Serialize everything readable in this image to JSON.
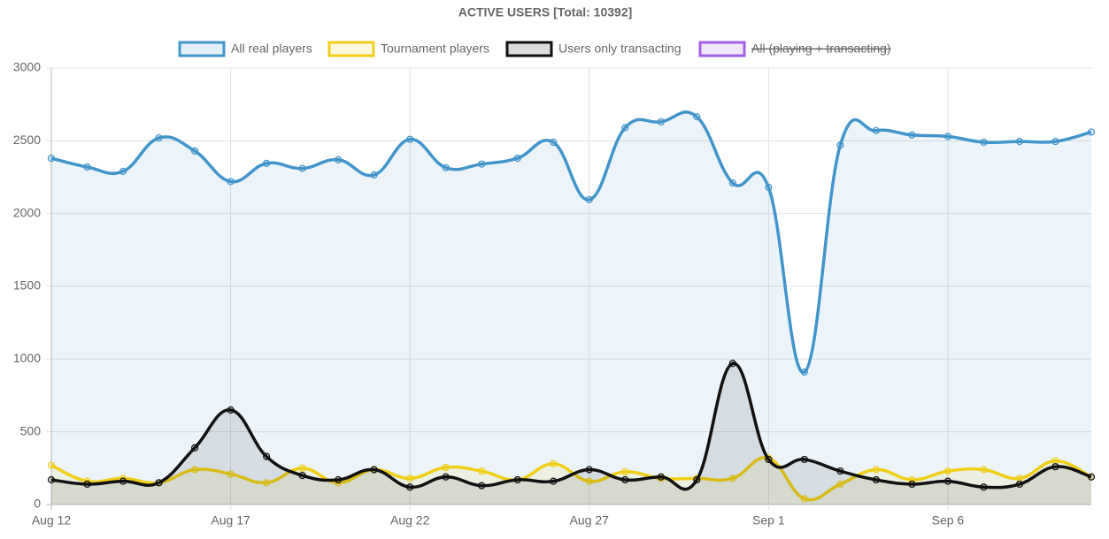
{
  "chart_data": {
    "type": "line",
    "title": "ACTIVE USERS [Total: 10392]",
    "categories": [
      "Aug 12",
      null,
      null,
      null,
      null,
      "Aug 17",
      null,
      null,
      null,
      null,
      "Aug 22",
      null,
      null,
      null,
      null,
      "Aug 27",
      null,
      null,
      null,
      null,
      "Sep 1",
      null,
      null,
      null,
      null,
      "Sep 6",
      null,
      null,
      null,
      null
    ],
    "series": [
      {
        "name": "All real players",
        "color": "#4295cc",
        "values": [
          2380,
          2320,
          2290,
          2520,
          2430,
          2220,
          2345,
          2310,
          2370,
          2265,
          2510,
          2315,
          2340,
          2380,
          2490,
          2095,
          2590,
          2630,
          2665,
          2210,
          2180,
          910,
          2470,
          2570,
          2540,
          2530,
          2490,
          2495,
          2495,
          2560
        ]
      },
      {
        "name": "Tournament players",
        "color": "#f0ce18",
        "values": [
          270,
          160,
          180,
          150,
          240,
          210,
          150,
          250,
          150,
          240,
          180,
          255,
          230,
          170,
          280,
          160,
          225,
          180,
          180,
          180,
          320,
          40,
          140,
          240,
          170,
          230,
          240,
          180,
          300,
          190
        ]
      },
      {
        "name": "Users only transacting",
        "color": "#111111",
        "values": [
          170,
          140,
          160,
          150,
          390,
          650,
          330,
          200,
          170,
          240,
          120,
          190,
          130,
          170,
          160,
          240,
          170,
          190,
          170,
          970,
          310,
          310,
          230,
          170,
          140,
          160,
          120,
          140,
          260,
          190
        ]
      },
      {
        "name": "All (playing + transacting)",
        "color": "#a35ee8",
        "hidden": true
      }
    ],
    "ylim": [
      0,
      3000
    ],
    "yticks": [
      0,
      500,
      1000,
      1500,
      2000,
      2500,
      3000
    ],
    "grid": true
  }
}
